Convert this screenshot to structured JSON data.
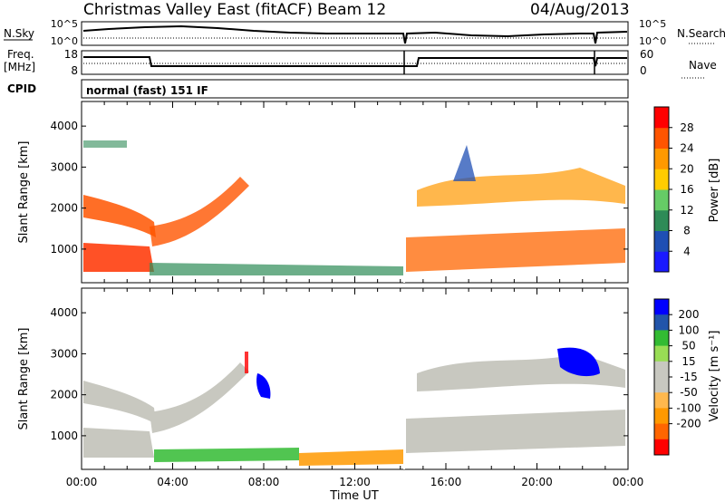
{
  "header": {
    "title": "Christmas Valley East (fitACF)",
    "beam": "Beam 12",
    "date": "04/Aug/2013"
  },
  "param_panels": {
    "nsky_label": "N.Sky",
    "nsky_ticks": [
      "10^5",
      "10^0"
    ],
    "nsearch_label": "N.Search",
    "nsearch_ticks": [
      "10^5",
      "10^0"
    ],
    "freq_label": "Freq.",
    "freq_unit": "[MHz]",
    "freq_ticks": [
      "18",
      "8"
    ],
    "nave_label": "Nave",
    "nave_ticks": [
      "60",
      "0"
    ],
    "cpid_label": "CPID",
    "cpid_text": "normal (fast) 151 IF"
  },
  "colors": {
    "power": [
      "#1a1aff",
      "#1f4fb4",
      "#2e8b57",
      "#66cc66",
      "#ffcc00",
      "#ff9900",
      "#ff5500",
      "#ff0000"
    ],
    "velocity": [
      "#ff0000",
      "#ff6600",
      "#ff9900",
      "#ffb84d",
      "#c8c8c0",
      "#c8c8c0",
      "#99dd55",
      "#33bb33",
      "#2255aa",
      "#0000ff"
    ],
    "groundscatter": "#c8c8c0"
  },
  "chart_data": [
    {
      "type": "heatmap",
      "name": "power",
      "ylabel": "Slant Range [km]",
      "yticks": [
        "1000",
        "2000",
        "3000",
        "4000"
      ],
      "yvalues": [
        1000,
        2000,
        3000,
        4000
      ],
      "ylim": [
        180,
        4600
      ],
      "xlim_hours": [
        0,
        24
      ],
      "colorbar_label": "Power [dB]",
      "colorbar_ticks": [
        "4",
        "8",
        "12",
        "16",
        "20",
        "24",
        "28"
      ],
      "colorbar_values": [
        4,
        8,
        12,
        16,
        20,
        24,
        28
      ],
      "colorbar_range": [
        0,
        32
      ]
    },
    {
      "type": "heatmap",
      "name": "velocity",
      "ylabel": "Slant Range [km]",
      "yticks": [
        "1000",
        "2000",
        "3000",
        "4000"
      ],
      "yvalues": [
        1000,
        2000,
        3000,
        4000
      ],
      "ylim": [
        180,
        4600
      ],
      "xlim_hours": [
        0,
        24
      ],
      "colorbar_label": "Velocity [m s⁻¹]",
      "colorbar_ticks": [
        "200",
        "100",
        "50",
        "15",
        "-15",
        "-50",
        "-100",
        "-200"
      ],
      "xticks": [
        "00:00",
        "04:00",
        "08:00",
        "12:00",
        "16:00",
        "20:00",
        "00:00"
      ],
      "xvalues": [
        0,
        4,
        8,
        12,
        16,
        20,
        24
      ],
      "xlabel": "Time UT"
    }
  ]
}
